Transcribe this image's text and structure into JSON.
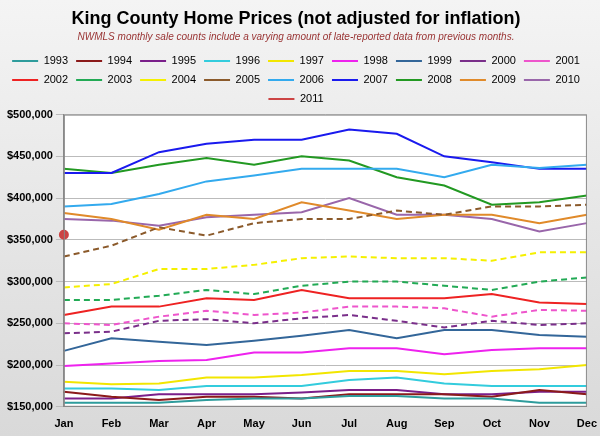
{
  "chart_data": {
    "type": "line",
    "title": "King County Home Prices (not adjusted for inflation)",
    "subtitle": "NWMLS monthly sale counts include a varying amount of late-reported data from previous months.",
    "categories": [
      "Jan",
      "Feb",
      "Mar",
      "Apr",
      "May",
      "Jun",
      "Jul",
      "Aug",
      "Sep",
      "Oct",
      "Nov",
      "Dec"
    ],
    "ylim": [
      150000,
      500000
    ],
    "yticks": [
      {
        "value": 150000,
        "label": "$150,000"
      },
      {
        "value": 200000,
        "label": "$200,000"
      },
      {
        "value": 250000,
        "label": "$250,000"
      },
      {
        "value": 300000,
        "label": "$300,000"
      },
      {
        "value": 350000,
        "label": "$350,000"
      },
      {
        "value": 400000,
        "label": "$400,000"
      },
      {
        "value": 450000,
        "label": "$450,000"
      },
      {
        "value": 500000,
        "label": "$500,000"
      }
    ],
    "grid": "y",
    "legend": "top",
    "series": [
      {
        "name": "1993",
        "color": "#2e9c9c",
        "line_style": "solid",
        "values": [
          155000,
          155000,
          155000,
          158000,
          160000,
          160000,
          163000,
          163000,
          160000,
          160000,
          155000,
          155000
        ]
      },
      {
        "name": "1994",
        "color": "#8b1a1a",
        "line_style": "solid",
        "values": [
          168000,
          162000,
          158000,
          162000,
          162000,
          160000,
          165000,
          165000,
          165000,
          162000,
          170000,
          165000
        ]
      },
      {
        "name": "1995",
        "color": "#7a1f8a",
        "line_style": "solid",
        "values": [
          160000,
          160000,
          165000,
          165000,
          165000,
          167000,
          170000,
          170000,
          165000,
          165000,
          168000,
          168000
        ]
      },
      {
        "name": "1996",
        "color": "#33ccdd",
        "line_style": "solid",
        "values": [
          172000,
          172000,
          170000,
          175000,
          175000,
          175000,
          182000,
          185000,
          178000,
          175000,
          175000,
          175000
        ]
      },
      {
        "name": "1997",
        "color": "#f2e600",
        "line_style": "solid",
        "values": [
          180000,
          177000,
          178000,
          185000,
          185000,
          188000,
          193000,
          193000,
          189000,
          193000,
          195000,
          200000
        ]
      },
      {
        "name": "1998",
        "color": "#ee22ee",
        "line_style": "solid",
        "values": [
          199000,
          202000,
          205000,
          206000,
          215000,
          215000,
          220000,
          220000,
          213000,
          218000,
          220000,
          220000
        ]
      },
      {
        "name": "1999",
        "color": "#336699",
        "line_style": "solid",
        "values": [
          217000,
          232000,
          228000,
          224000,
          229000,
          235000,
          242000,
          232000,
          242000,
          242000,
          236000,
          234000
        ]
      },
      {
        "name": "2000",
        "color": "#7a2f8a",
        "line_style": "dashed",
        "values": [
          238000,
          240000,
          253000,
          255000,
          250000,
          256000,
          260000,
          253000,
          245000,
          253000,
          248000,
          250000
        ]
      },
      {
        "name": "2001",
        "color": "#ee55cc",
        "line_style": "dashed",
        "values": [
          250000,
          248000,
          258000,
          265000,
          260000,
          263000,
          270000,
          270000,
          268000,
          258000,
          266000,
          265000
        ]
      },
      {
        "name": "2002",
        "color": "#ee2222",
        "line_style": "solid",
        "values": [
          260000,
          270000,
          270000,
          280000,
          278000,
          290000,
          280000,
          280000,
          280000,
          285000,
          275000,
          273000
        ]
      },
      {
        "name": "2003",
        "color": "#22aa55",
        "line_style": "dashed",
        "values": [
          278000,
          278000,
          283000,
          290000,
          285000,
          295000,
          300000,
          300000,
          295000,
          290000,
          300000,
          305000
        ]
      },
      {
        "name": "2004",
        "color": "#f5f000",
        "line_style": "dashed",
        "values": [
          293000,
          297000,
          315000,
          315000,
          320000,
          328000,
          330000,
          328000,
          328000,
          325000,
          335000,
          335000
        ]
      },
      {
        "name": "2005",
        "color": "#8b5a2b",
        "line_style": "dashed",
        "values": [
          330000,
          343000,
          365000,
          355000,
          370000,
          375000,
          375000,
          385000,
          380000,
          390000,
          390000,
          392000
        ]
      },
      {
        "name": "2006",
        "color": "#33aaee",
        "line_style": "solid",
        "values": [
          390000,
          393000,
          405000,
          420000,
          427000,
          435000,
          435000,
          435000,
          425000,
          440000,
          436000,
          440000
        ]
      },
      {
        "name": "2007",
        "color": "#1a1aee",
        "line_style": "solid",
        "values": [
          430000,
          430000,
          455000,
          465000,
          470000,
          470000,
          482000,
          477000,
          450000,
          443000,
          435000,
          435000
        ]
      },
      {
        "name": "2008",
        "color": "#229922",
        "line_style": "solid",
        "values": [
          435000,
          430000,
          440000,
          448000,
          440000,
          450000,
          445000,
          425000,
          415000,
          392000,
          395000,
          403000
        ]
      },
      {
        "name": "2009",
        "color": "#e08a2a",
        "line_style": "solid",
        "values": [
          382000,
          375000,
          362000,
          380000,
          375000,
          395000,
          385000,
          375000,
          380000,
          380000,
          370000,
          380000
        ]
      },
      {
        "name": "2010",
        "color": "#9966aa",
        "line_style": "solid",
        "values": [
          375000,
          373000,
          367000,
          377000,
          380000,
          383000,
          400000,
          380000,
          380000,
          375000,
          360000,
          370000
        ]
      },
      {
        "name": "2011",
        "color": "#cc4444",
        "line_style": "dotted",
        "marker": "circle",
        "values": [
          356000,
          null,
          null,
          null,
          null,
          null,
          null,
          null,
          null,
          null,
          null,
          null
        ]
      }
    ]
  }
}
